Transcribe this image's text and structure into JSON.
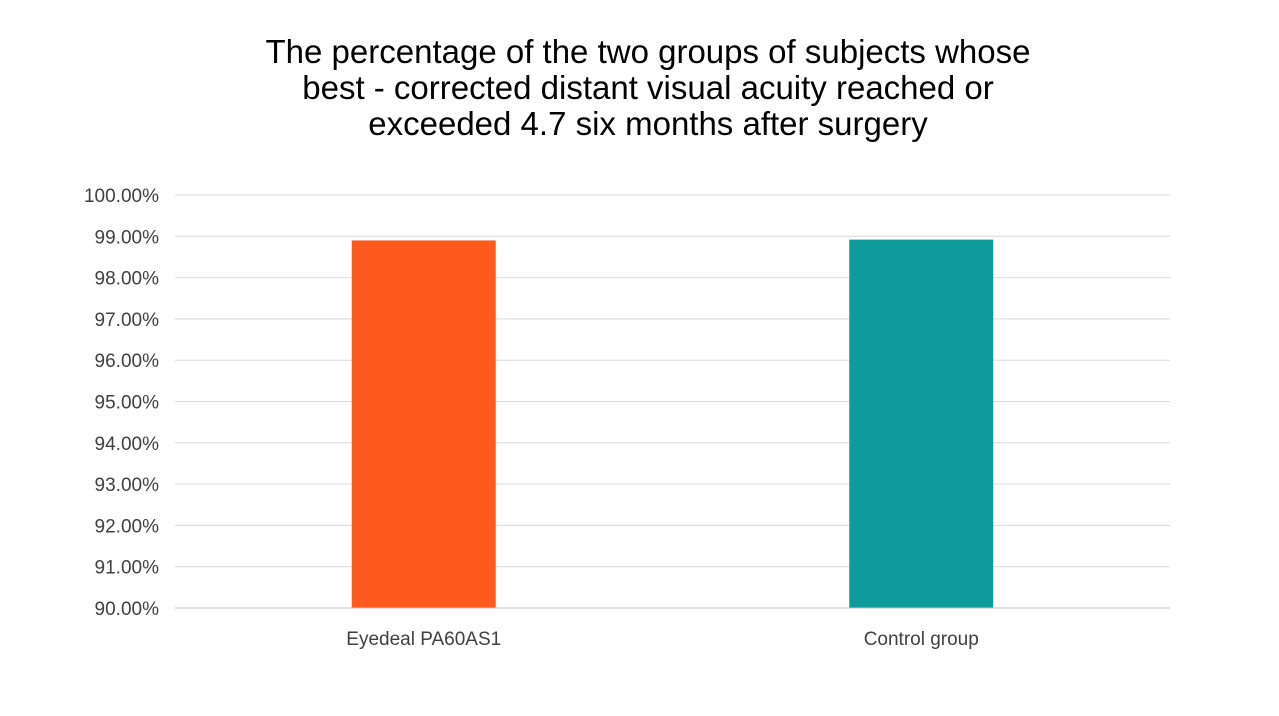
{
  "chart_data": {
    "type": "bar",
    "title_lines": [
      "The percentage of the two groups of subjects whose",
      "best - corrected distant visual acuity reached or",
      "exceeded 4.7 six months after surgery"
    ],
    "categories": [
      "Eyedeal PA60AS1",
      "Control group"
    ],
    "values": [
      98.9,
      98.92
    ],
    "bar_colors": [
      "#fe5a1d",
      "#0f9b9b"
    ],
    "ylim": [
      90,
      100
    ],
    "y_ticks": [
      90,
      91,
      92,
      93,
      94,
      95,
      96,
      97,
      98,
      99,
      100
    ],
    "y_tick_labels": [
      "90.00%",
      "91.00%",
      "92.00%",
      "93.00%",
      "94.00%",
      "95.00%",
      "96.00%",
      "97.00%",
      "98.00%",
      "99.00%",
      "100.00%"
    ],
    "xlabel": "",
    "ylabel": "",
    "grid": true,
    "legend": "none"
  }
}
